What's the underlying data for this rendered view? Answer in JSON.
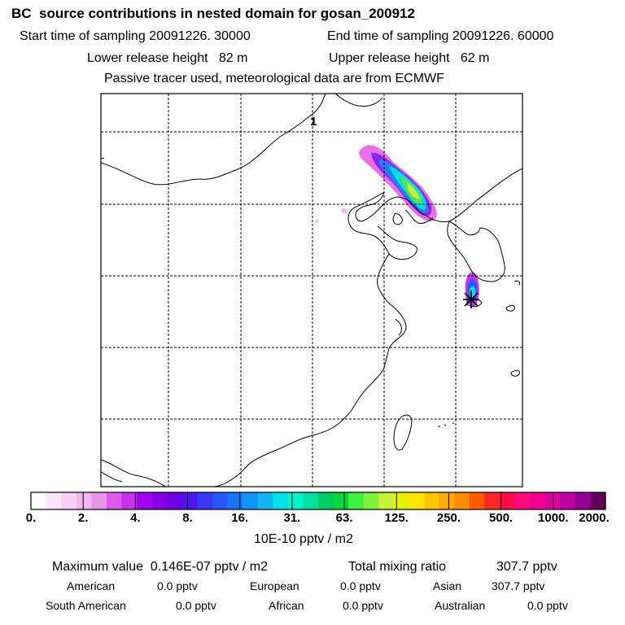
{
  "header": {
    "title": "BC  source contributions in nested domain for gosan_200912",
    "start_time": "Start time of sampling 20091226. 30000",
    "end_time": "End time of sampling 20091226. 60000",
    "lower_height": "Lower release height   82 m",
    "upper_height": "Upper release height   62 m",
    "tracer_note": "Passive tracer used, meteorological data are from ECMWF"
  },
  "map": {
    "grid_label": "1",
    "receptor_marker": "star-marker",
    "frame_color": "#000000"
  },
  "chart_data": {
    "type": "heatmap",
    "title": "BC  source contributions in nested domain for gosan_200912",
    "colorbar": {
      "tick_labels": [
        "0.",
        "2.",
        "4.",
        "8.",
        "16.",
        "31.",
        "63.",
        "125.",
        "250.",
        "500.",
        "1000.",
        "2000."
      ],
      "colors": [
        "#ffffff",
        "#fbe6fb",
        "#f6d0f6",
        "#f1b6f1",
        "#ea94ea",
        "#dd5be8",
        "#c731ee",
        "#a600f0",
        "#8a00e6",
        "#6e00e8",
        "#4b14f0",
        "#3838f6",
        "#2956fc",
        "#1476fa",
        "#0f95f6",
        "#12b4f4",
        "#00e2e8",
        "#00f2d0",
        "#00e0a0",
        "#00cc66",
        "#00d83c",
        "#3cf23c",
        "#7df23c",
        "#c5f234",
        "#e6f200",
        "#ffe600",
        "#ffc800",
        "#ffa800",
        "#ff8c00",
        "#ff5a00",
        "#ff2828",
        "#ff0a46",
        "#ff0a7a",
        "#f0008c",
        "#dc00a0",
        "#be00a0",
        "#960096",
        "#64005a"
      ],
      "units": "10E-10 pptv / m2"
    }
  },
  "stats": {
    "max_label": "Maximum value  0.146E-07 pptv / m2",
    "total_label": "Total mixing ratio",
    "total_value": "307.7 pptv",
    "american_label": "American",
    "american_value": "0.0 pptv",
    "european_label": "European",
    "european_value": "0.0 pptv",
    "asian_label": "Asian",
    "asian_value": "307.7 pptv",
    "south_american_label": "South American",
    "south_american_value": "0.0 pptv",
    "african_label": "African",
    "african_value": "0.0 pptv",
    "australian_label": "Australian",
    "australian_value": "0.0 pptv"
  }
}
